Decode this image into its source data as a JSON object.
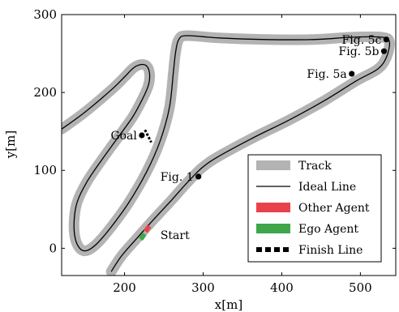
{
  "chart_data": {
    "type": "line",
    "xlabel": "x[m]",
    "ylabel": "y[m]",
    "xlim": [
      120,
      545
    ],
    "ylim": [
      -35,
      300
    ],
    "x_ticks": [
      200,
      300,
      400,
      500
    ],
    "y_ticks": [
      0,
      100,
      200,
      300
    ],
    "grid": false,
    "legend_position": "bottom-right",
    "legend": [
      {
        "label": "Track",
        "style": "track",
        "color": "#b3b3b3"
      },
      {
        "label": "Ideal Line",
        "style": "line",
        "color": "#000000"
      },
      {
        "label": "Other Agent",
        "style": "box",
        "color": "#e8424a"
      },
      {
        "label": "Ego Agent",
        "style": "box",
        "color": "#3fa64a"
      },
      {
        "label": "Finish Line",
        "style": "dash",
        "color": "#000000"
      }
    ],
    "ideal_line": [
      [
        120,
        153
      ],
      [
        150,
        175
      ],
      [
        185,
        205
      ],
      [
        200,
        220
      ],
      [
        212,
        232
      ],
      [
        222,
        236
      ],
      [
        229,
        233
      ],
      [
        232,
        222
      ],
      [
        230,
        208
      ],
      [
        222,
        190
      ],
      [
        210,
        168
      ],
      [
        190,
        140
      ],
      [
        170,
        112
      ],
      [
        152,
        85
      ],
      [
        140,
        60
      ],
      [
        136,
        37
      ],
      [
        137,
        14
      ],
      [
        143,
        0
      ],
      [
        152,
        -3
      ],
      [
        165,
        6
      ],
      [
        182,
        26
      ],
      [
        205,
        58
      ],
      [
        228,
        98
      ],
      [
        245,
        137
      ],
      [
        257,
        180
      ],
      [
        262,
        225
      ],
      [
        265,
        252
      ],
      [
        269,
        268
      ],
      [
        279,
        273
      ],
      [
        320,
        270
      ],
      [
        380,
        268
      ],
      [
        440,
        268
      ],
      [
        490,
        271
      ],
      [
        527,
        271
      ],
      [
        537,
        265
      ],
      [
        533,
        245
      ],
      [
        522,
        230
      ],
      [
        495,
        215
      ],
      [
        455,
        190
      ],
      [
        410,
        165
      ],
      [
        360,
        140
      ],
      [
        310,
        112
      ],
      [
        285,
        90
      ],
      [
        260,
        62
      ],
      [
        238,
        38
      ],
      [
        215,
        12
      ],
      [
        196,
        -10
      ],
      [
        183,
        -30
      ]
    ],
    "points": [
      {
        "label": "Fig. 5c",
        "x": 533,
        "y": 268
      },
      {
        "label": "Fig. 5b",
        "x": 530,
        "y": 253
      },
      {
        "label": "Fig. 5a",
        "x": 489,
        "y": 224
      },
      {
        "label": "Fig. 1",
        "x": 294,
        "y": 92
      },
      {
        "label": "Goal",
        "x": 222,
        "y": 145
      }
    ],
    "other_agent": {
      "x": 229,
      "y": 25
    },
    "ego_agent": {
      "x": 223,
      "y": 15
    },
    "finish_line": [
      [
        226,
        152
      ],
      [
        234,
        136
      ]
    ],
    "start_label": "Start"
  }
}
